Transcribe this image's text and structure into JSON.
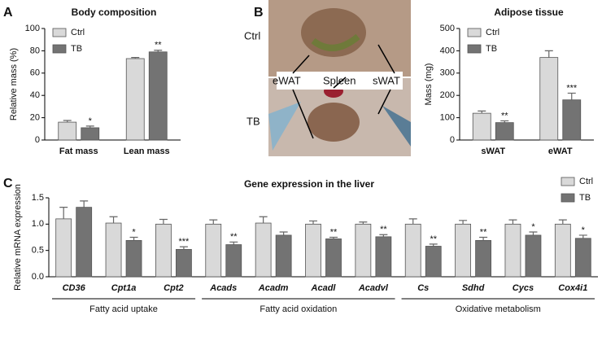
{
  "panels": [
    "A",
    "B",
    "C"
  ],
  "photo": {
    "top": "Ctrl",
    "bottom": "TB",
    "labels": [
      "eWAT",
      "Spleen",
      "sWAT"
    ]
  },
  "chart_data": [
    {
      "type": "bar",
      "title": "Body composition",
      "y_label": "Relative mass (%)",
      "categories": [
        "Fat mass",
        "Lean mass"
      ],
      "series": [
        {
          "name": "Ctrl",
          "color": "#d9d9d9",
          "values": [
            16,
            73
          ],
          "errors": [
            1.5,
            1
          ],
          "annotations": [
            null,
            null
          ]
        },
        {
          "name": "TB",
          "color": "#737373",
          "values": [
            11,
            79
          ],
          "errors": [
            1.5,
            1.5
          ],
          "annotations": [
            "*",
            "**"
          ]
        }
      ],
      "ylim": [
        0,
        100
      ],
      "yticks": [
        0,
        20,
        40,
        60,
        80,
        100
      ],
      "legend": "upper left"
    },
    {
      "type": "bar",
      "title": "Adipose tissue",
      "y_label": "Mass (mg)",
      "categories": [
        "sWAT",
        "eWAT"
      ],
      "series": [
        {
          "name": "Ctrl",
          "color": "#d9d9d9",
          "values": [
            120,
            370
          ],
          "errors": [
            10,
            30
          ],
          "annotations": [
            null,
            null
          ]
        },
        {
          "name": "TB",
          "color": "#737373",
          "values": [
            78,
            180
          ],
          "errors": [
            8,
            30
          ],
          "annotations": [
            "**",
            "***"
          ]
        }
      ],
      "ylim": [
        0,
        500
      ],
      "yticks": [
        0,
        100,
        200,
        300,
        400,
        500
      ],
      "legend": "upper left"
    },
    {
      "type": "bar",
      "title": "Gene expression in the liver",
      "y_label": "Relative mRNA expression",
      "categories": [
        "CD36",
        "Cpt1a",
        "Cpt2",
        "Acads",
        "Acadm",
        "Acadl",
        "Acadvl",
        "Cs",
        "Sdhd",
        "Cycs",
        "Cox4i1"
      ],
      "series": [
        {
          "name": "Ctrl",
          "color": "#d9d9d9",
          "values": [
            1.1,
            1.02,
            1.0,
            1.0,
            1.02,
            1.0,
            1.0,
            1.0,
            1.0,
            1.0,
            1.0
          ],
          "errors": [
            0.22,
            0.12,
            0.09,
            0.08,
            0.12,
            0.06,
            0.04,
            0.1,
            0.07,
            0.08,
            0.08
          ],
          "annotations": [
            null,
            null,
            null,
            null,
            null,
            null,
            null,
            null,
            null,
            null,
            null
          ]
        },
        {
          "name": "TB",
          "color": "#737373",
          "values": [
            1.32,
            0.69,
            0.52,
            0.61,
            0.79,
            0.72,
            0.76,
            0.58,
            0.69,
            0.79,
            0.73
          ],
          "errors": [
            0.12,
            0.06,
            0.05,
            0.05,
            0.06,
            0.03,
            0.04,
            0.04,
            0.06,
            0.06,
            0.06
          ],
          "annotations": [
            null,
            "*",
            "***",
            "**",
            null,
            "**",
            "**",
            "**",
            "**",
            "*",
            "*"
          ]
        }
      ],
      "groups": [
        {
          "name": "Fatty acid uptake",
          "size": 3
        },
        {
          "name": "Fatty acid oxidation",
          "size": 4
        },
        {
          "name": "Oxidative metabolism",
          "size": 4
        }
      ],
      "ylim": [
        0,
        1.5
      ],
      "yticks": [
        {
          "value": 0,
          "label": "0.0"
        },
        0.5,
        {
          "value": 1,
          "label": "1.0"
        },
        1.5
      ],
      "legend": "upper right",
      "italic_categories": true
    }
  ]
}
